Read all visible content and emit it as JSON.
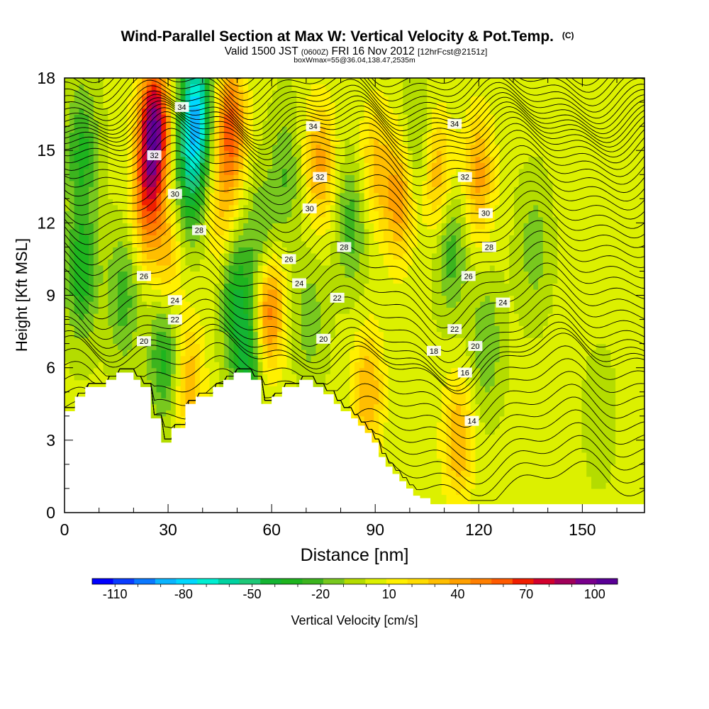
{
  "chart_data": {
    "type": "heatmap",
    "title": "Wind-Parallel Section at Max W: Vertical Velocity & Pot.Temp.",
    "title_mark": "(C)",
    "subtitle": {
      "lead": "Valid 1500 JST",
      "zulu": "(0600Z)",
      "date": "FRI 16 Nov 2012",
      "forecast": "[12hrFcst@2151z]"
    },
    "subtitle2": "boxWmax=55@36.04,138.47,2535m",
    "xlabel": "Distance [nm]",
    "ylabel": "Height [Kft MSL]",
    "xlim": [
      0,
      168
    ],
    "ylim": [
      0,
      18
    ],
    "x_ticks": [
      "0",
      "30",
      "60",
      "90",
      "120",
      "150"
    ],
    "x_tick_values": [
      0,
      30,
      60,
      90,
      120,
      150
    ],
    "y_ticks": [
      "0",
      "3",
      "6",
      "9",
      "12",
      "15",
      "18"
    ],
    "y_tick_values": [
      0,
      3,
      6,
      9,
      12,
      15,
      18
    ],
    "colorbar": {
      "label": "Vertical Velocity [cm/s]",
      "tick_labels": [
        "-110",
        "-80",
        "-50",
        "-20",
        "10",
        "40",
        "70",
        "100"
      ],
      "tick_values": [
        -110,
        -80,
        -50,
        -20,
        10,
        40,
        70,
        100
      ],
      "min": -120,
      "max": 110,
      "step": 10,
      "colors": [
        "#0000ff",
        "#0a3cff",
        "#0a78ff",
        "#0ab4ff",
        "#00d8ff",
        "#00eed2",
        "#00d2a0",
        "#1ec878",
        "#14b432",
        "#1eb41e",
        "#3cb41e",
        "#78c81e",
        "#b4dc00",
        "#dcf000",
        "#fff000",
        "#ffdc00",
        "#ffbe00",
        "#ffa000",
        "#ff7f00",
        "#ff5a00",
        "#f01e00",
        "#d2002d",
        "#a0005a",
        "#78008c",
        "#5a0096"
      ]
    },
    "terrain": [
      [
        0,
        4.2
      ],
      [
        3,
        4.2
      ],
      [
        3,
        4.8
      ],
      [
        6,
        4.8
      ],
      [
        6,
        5.2
      ],
      [
        12,
        5.2
      ],
      [
        12,
        5.5
      ],
      [
        15,
        5.5
      ],
      [
        15,
        5.8
      ],
      [
        20,
        5.8
      ],
      [
        20,
        5.5
      ],
      [
        22,
        5.5
      ],
      [
        22,
        5.2
      ],
      [
        25,
        5.2
      ],
      [
        25,
        3.9
      ],
      [
        28,
        3.9
      ],
      [
        28,
        2.9
      ],
      [
        31,
        2.9
      ],
      [
        31,
        3.5
      ],
      [
        35,
        3.5
      ],
      [
        35,
        4.5
      ],
      [
        38,
        4.5
      ],
      [
        38,
        4.8
      ],
      [
        43,
        4.8
      ],
      [
        43,
        5.2
      ],
      [
        46,
        5.2
      ],
      [
        46,
        5.5
      ],
      [
        49,
        5.5
      ],
      [
        49,
        5.8
      ],
      [
        54,
        5.8
      ],
      [
        54,
        5.5
      ],
      [
        57,
        5.5
      ],
      [
        57,
        4.5
      ],
      [
        60,
        4.5
      ],
      [
        60,
        4.8
      ],
      [
        63,
        4.8
      ],
      [
        63,
        5.2
      ],
      [
        68,
        5.2
      ],
      [
        68,
        5.5
      ],
      [
        72,
        5.5
      ],
      [
        72,
        5.2
      ],
      [
        75,
        5.2
      ],
      [
        75,
        4.9
      ],
      [
        78,
        4.9
      ],
      [
        78,
        4.5
      ],
      [
        80,
        4.5
      ],
      [
        80,
        4.2
      ],
      [
        83,
        4.2
      ],
      [
        83,
        3.9
      ],
      [
        85,
        3.9
      ],
      [
        85,
        3.6
      ],
      [
        87,
        3.6
      ],
      [
        87,
        3.3
      ],
      [
        89,
        3.3
      ],
      [
        89,
        2.9
      ],
      [
        91,
        2.9
      ],
      [
        91,
        2.3
      ],
      [
        93,
        2.3
      ],
      [
        93,
        1.9
      ],
      [
        95,
        1.9
      ],
      [
        95,
        1.6
      ],
      [
        97,
        1.6
      ],
      [
        97,
        1.3
      ],
      [
        99,
        1.3
      ],
      [
        99,
        1.0
      ],
      [
        101,
        1.0
      ],
      [
        101,
        0.7
      ],
      [
        103,
        0.7
      ],
      [
        103,
        0.6
      ],
      [
        106,
        0.6
      ],
      [
        106,
        0.35
      ],
      [
        168,
        0.35
      ],
      [
        168,
        0
      ]
    ],
    "w_field": {
      "base_cm_s": 12,
      "blobs": [
        {
          "x": 5,
          "z": 10,
          "w": -40
        },
        {
          "x": 5,
          "z": 15,
          "w": -35
        },
        {
          "x": 17,
          "z": 9,
          "w": -28
        },
        {
          "x": 26,
          "z": 16,
          "w": 100
        },
        {
          "x": 24,
          "z": 13,
          "w": 55
        },
        {
          "x": 30,
          "z": 10.5,
          "w": 30
        },
        {
          "x": 29,
          "z": 6.5,
          "w": -38
        },
        {
          "x": 38,
          "z": 16.5,
          "w": -90
        },
        {
          "x": 36,
          "z": 13.5,
          "w": -38
        },
        {
          "x": 36,
          "z": 5.5,
          "w": 35
        },
        {
          "x": 48,
          "z": 16,
          "w": 65
        },
        {
          "x": 46,
          "z": 12,
          "w": 30
        },
        {
          "x": 49,
          "z": 9.5,
          "w": -38
        },
        {
          "x": 53,
          "z": 6.5,
          "w": -48
        },
        {
          "x": 57,
          "z": 11,
          "w": -32
        },
        {
          "x": 59,
          "z": 8.5,
          "w": 62
        },
        {
          "x": 64,
          "z": 14,
          "w": -22
        },
        {
          "x": 74,
          "z": 14.5,
          "w": 42
        },
        {
          "x": 71,
          "z": 8,
          "w": -18
        },
        {
          "x": 83,
          "z": 12,
          "w": -28
        },
        {
          "x": 88,
          "z": 5,
          "w": 38
        },
        {
          "x": 90,
          "z": 14.5,
          "w": 30
        },
        {
          "x": 97,
          "z": 13,
          "w": 45
        },
        {
          "x": 102,
          "z": 15,
          "w": -22
        },
        {
          "x": 108,
          "z": 14,
          "w": 38
        },
        {
          "x": 112,
          "z": 11,
          "w": -30
        },
        {
          "x": 114,
          "z": 3,
          "w": 38
        },
        {
          "x": 120,
          "z": 14,
          "w": 42
        },
        {
          "x": 122,
          "z": 7,
          "w": -22
        },
        {
          "x": 136,
          "z": 11,
          "w": -18
        },
        {
          "x": 150,
          "z": 12,
          "w": 4
        },
        {
          "x": 155,
          "z": 4,
          "w": -8
        }
      ]
    },
    "theta_contours": {
      "min": 12,
      "max": 37,
      "step": 0.5,
      "labels": [
        {
          "value": "34",
          "x": 34,
          "z": 16.8
        },
        {
          "value": "34",
          "x": 72,
          "z": 16.0
        },
        {
          "value": "34",
          "x": 113,
          "z": 16.1
        },
        {
          "value": "32",
          "x": 26,
          "z": 14.8
        },
        {
          "value": "32",
          "x": 74,
          "z": 13.9
        },
        {
          "value": "32",
          "x": 116,
          "z": 13.9
        },
        {
          "value": "30",
          "x": 32,
          "z": 13.2
        },
        {
          "value": "30",
          "x": 71,
          "z": 12.6
        },
        {
          "value": "30",
          "x": 122,
          "z": 12.4
        },
        {
          "value": "28",
          "x": 39,
          "z": 11.7
        },
        {
          "value": "28",
          "x": 81,
          "z": 11.0
        },
        {
          "value": "28",
          "x": 123,
          "z": 11.0
        },
        {
          "value": "26",
          "x": 65,
          "z": 10.5
        },
        {
          "value": "26",
          "x": 23,
          "z": 9.8
        },
        {
          "value": "26",
          "x": 117,
          "z": 9.8
        },
        {
          "value": "24",
          "x": 68,
          "z": 9.5
        },
        {
          "value": "24",
          "x": 32,
          "z": 8.8
        },
        {
          "value": "24",
          "x": 127,
          "z": 8.7
        },
        {
          "value": "22",
          "x": 79,
          "z": 8.9
        },
        {
          "value": "22",
          "x": 32,
          "z": 8.0
        },
        {
          "value": "22",
          "x": 113,
          "z": 7.6
        },
        {
          "value": "20",
          "x": 23,
          "z": 7.1
        },
        {
          "value": "20",
          "x": 75,
          "z": 7.2
        },
        {
          "value": "20",
          "x": 119,
          "z": 6.9
        },
        {
          "value": "18",
          "x": 107,
          "z": 6.7
        },
        {
          "value": "16",
          "x": 116,
          "z": 5.8
        },
        {
          "value": "14",
          "x": 118,
          "z": 3.8
        }
      ]
    }
  }
}
